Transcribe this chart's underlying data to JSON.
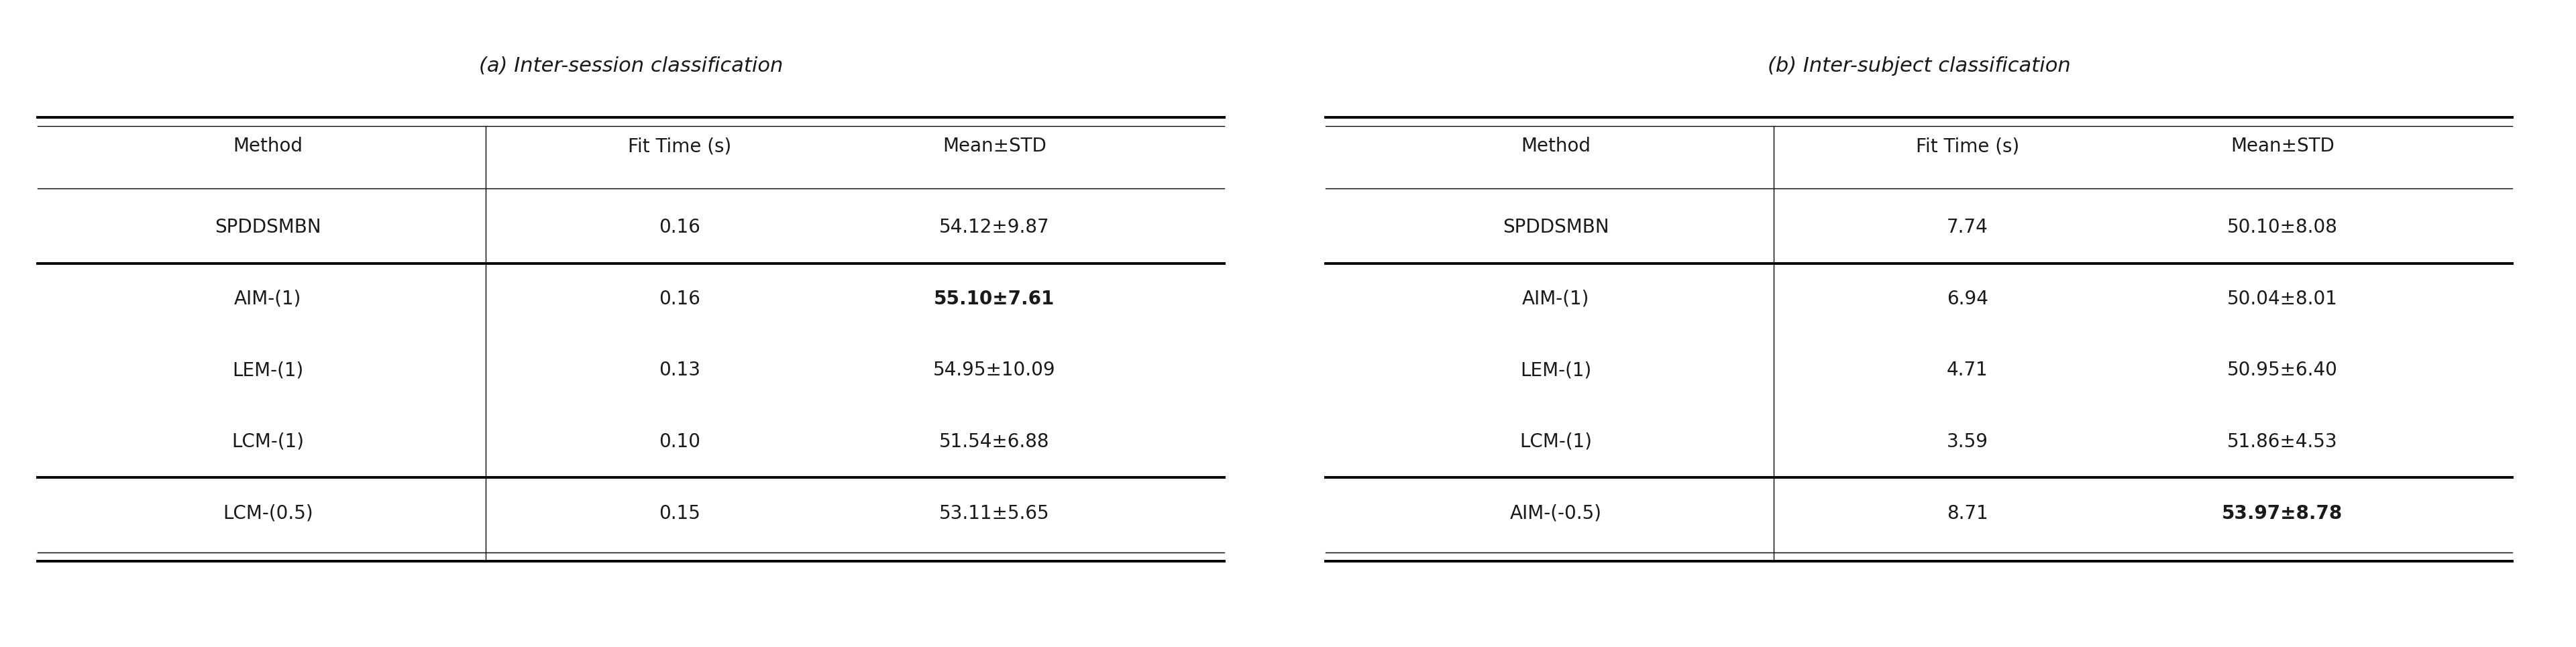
{
  "fig_width": 38.4,
  "fig_height": 9.65,
  "bg_color": "#ffffff",
  "title_a": "(a) Inter-session classification",
  "title_b": "(b) Inter-subject classification",
  "title_fontsize": 22,
  "header": [
    "Method",
    "Fit Time (s)",
    "Mean±STD"
  ],
  "table_a": {
    "rows": [
      [
        "SPDDSMBN",
        "0.16",
        "54.12±9.87"
      ],
      [
        "AIM-(1)",
        "0.16",
        "55.10±7.61"
      ],
      [
        "LEM-(1)",
        "0.13",
        "54.95±10.09"
      ],
      [
        "LCM-(1)",
        "0.10",
        "51.54±6.88"
      ],
      [
        "LCM-(0.5)",
        "0.15",
        "53.11±5.65"
      ]
    ],
    "bold_cell": [
      [
        1,
        2
      ]
    ],
    "group_separators": [
      1,
      4
    ]
  },
  "table_b": {
    "rows": [
      [
        "SPDDSMBN",
        "7.74",
        "50.10±8.08"
      ],
      [
        "AIM-(1)",
        "6.94",
        "50.04±8.01"
      ],
      [
        "LEM-(1)",
        "4.71",
        "50.95±6.40"
      ],
      [
        "LCM-(1)",
        "3.59",
        "51.86±4.53"
      ],
      [
        "AIM-(-0.5)",
        "8.71",
        "53.97±8.78"
      ]
    ],
    "bold_cell": [
      [
        4,
        2
      ]
    ],
    "group_separators": [
      1,
      4
    ]
  },
  "cell_fontsize": 20,
  "header_fontsize": 20,
  "text_color": "#1a1a1a"
}
